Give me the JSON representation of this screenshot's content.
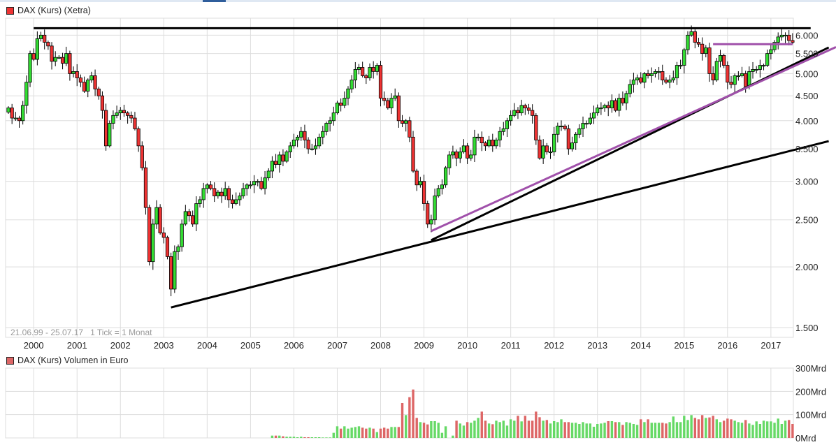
{
  "colors": {
    "up": "#33dd33",
    "down": "#ee3333",
    "vol_up": "#66d966",
    "vol_down": "#dd6666",
    "trend_black": "#000000",
    "trend_purple": "#a050aa",
    "grid": "#dddddd",
    "legend_price": "#ee3333",
    "legend_volume": "#dd6666"
  },
  "chart_data": [
    {
      "type": "candlestick",
      "title": "DAX (Kurs) (Xetra)",
      "interval": "1 month",
      "range_label": "21.06.99 - 25.07.17",
      "tick_label": "1 Tick = 1 Monat",
      "y_scale": "log",
      "ylim": [
        1450,
        6300
      ],
      "y_ticks": [
        "1.500",
        "2.000",
        "2.500",
        "3.000",
        "3.500",
        "4.000",
        "4.500",
        "5.000",
        "5.500",
        "6.000"
      ],
      "y_tick_values": [
        1500,
        2000,
        2500,
        3000,
        3500,
        4000,
        4500,
        5000,
        5500,
        6000
      ],
      "x_ticks": [
        "2000",
        "2001",
        "2002",
        "2003",
        "2004",
        "2005",
        "2006",
        "2007",
        "2008",
        "2009",
        "2010",
        "2011",
        "2012",
        "2013",
        "2014",
        "2015",
        "2016",
        "2017"
      ],
      "grid": true,
      "first_month": "1999-06",
      "closes_by_year": {
        "1999": [
          4250,
          4050,
          4050,
          4000,
          4300,
          4800,
          5500
        ],
        "2000": [
          5350,
          5900,
          6000,
          5800,
          5700,
          5300,
          5400,
          5400,
          5250,
          5500,
          5000,
          5050
        ],
        "2001": [
          4900,
          4800,
          4600,
          4850,
          4950,
          4650,
          4500,
          4200,
          3550,
          3950,
          4100,
          4150
        ],
        "2002": [
          4200,
          4150,
          4100,
          4050,
          3850,
          3550,
          3200,
          2650,
          2050,
          2450,
          2650,
          2350
        ],
        "2003": [
          2300,
          2100,
          1800,
          2150,
          2200,
          2450,
          2600,
          2550,
          2450,
          2700,
          2750,
          2900
        ],
        "2004": [
          2950,
          2900,
          2800,
          2850,
          2800,
          2900,
          2750,
          2700,
          2750,
          2800,
          2900,
          2950
        ],
        "2005": [
          2950,
          3000,
          3000,
          2900,
          3050,
          3150,
          3300,
          3250,
          3400,
          3300,
          3450,
          3550
        ],
        "2006": [
          3650,
          3700,
          3800,
          3650,
          3500,
          3500,
          3550,
          3700,
          3800,
          3950,
          4000,
          4150
        ],
        "2007": [
          4350,
          4300,
          4450,
          4650,
          4850,
          5100,
          5150,
          4950,
          4900,
          5150,
          5050,
          5200
        ],
        "2008": [
          4450,
          4400,
          4250,
          4450,
          4500,
          4000,
          3950,
          4000,
          3700,
          3150,
          2950,
          3000
        ],
        "2009": [
          2700,
          2450,
          2500,
          2800,
          2900,
          2950,
          3200,
          3400,
          3450,
          3350,
          3450,
          3550
        ],
        "2010": [
          3350,
          3400,
          3700,
          3700,
          3600,
          3550,
          3650,
          3550,
          3650,
          3800,
          3850,
          4000
        ],
        "2011": [
          4100,
          4200,
          4150,
          4300,
          4250,
          4200,
          4100,
          3650,
          3350,
          3550,
          3450,
          3450
        ],
        "2012": [
          3750,
          3900,
          3900,
          3850,
          3500,
          3600,
          3750,
          3850,
          3950,
          3950,
          4050,
          4150
        ],
        "2013": [
          4250,
          4250,
          4300,
          4250,
          4400,
          4200,
          4450,
          4350,
          4550,
          4750,
          4850,
          4900
        ],
        "2014": [
          4800,
          5000,
          4950,
          5000,
          5050,
          5050,
          4850,
          4800,
          4850,
          4900,
          5200,
          5200
        ],
        "2015": [
          5600,
          6000,
          6100,
          5800,
          5750,
          5500,
          5650,
          5000,
          4850,
          5300,
          5450,
          5200
        ],
        "2016": [
          4800,
          4750,
          4950,
          4950,
          5000,
          4700,
          5050,
          5100,
          5100,
          5200,
          5200,
          5500
        ],
        "2017": [
          5600,
          5800,
          5950,
          6000,
          6000,
          5850,
          5800
        ]
      },
      "trendlines": [
        {
          "color": "black",
          "from": [
            "2000-01",
            6200
          ],
          "to": [
            "2017-12",
            6200
          ]
        },
        {
          "color": "black",
          "from": [
            "2003-03",
            1650
          ],
          "to": [
            "2018-05",
            3630
          ]
        },
        {
          "color": "black",
          "from": [
            "2009-03",
            2270
          ],
          "to": [
            "2018-05",
            5660
          ]
        },
        {
          "color": "purple",
          "from": [
            "2009-03",
            2370
          ],
          "to": [
            "2018-07",
            5670
          ]
        },
        {
          "color": "purple",
          "from": [
            "2015-09",
            5750
          ],
          "to": [
            "2017-07",
            5750
          ]
        }
      ]
    },
    {
      "type": "bar",
      "title": "DAX (Kurs) Volumen in Euro",
      "unit": "Mrd",
      "ylim": [
        0,
        300
      ],
      "y_ticks": [
        "0Mrd",
        "100Mrd",
        "200Mrd",
        "300Mrd"
      ],
      "y_tick_values": [
        0,
        100,
        200,
        300
      ],
      "volumes_by_year": {
        "2005": [
          null,
          null,
          null,
          null,
          null,
          null,
          10,
          10,
          10,
          7,
          5,
          5
        ],
        "2006": [
          5,
          3,
          5,
          3,
          3,
          3,
          3,
          3,
          2,
          2,
          2,
          22
        ],
        "2007": [
          50,
          40,
          50,
          40,
          44,
          47,
          50,
          44,
          40,
          44,
          40,
          25
        ],
        "2008": [
          40,
          44,
          40,
          47,
          47,
          47,
          150,
          98,
          175,
          208,
          86,
          68
        ],
        "2009": [
          65,
          58,
          72,
          72,
          65,
          22,
          50,
          0,
          10,
          74,
          62,
          53
        ],
        "2010": [
          68,
          65,
          74,
          86,
          113,
          74,
          62,
          59,
          74,
          68,
          74,
          53
        ],
        "2011": [
          80,
          74,
          95,
          71,
          95,
          74,
          74,
          113,
          89,
          74,
          77,
          62
        ],
        "2012": [
          72,
          68,
          80,
          68,
          68,
          65,
          65,
          60,
          68,
          62,
          62,
          48
        ],
        "2013": [
          60,
          62,
          65,
          72,
          72,
          68,
          68,
          56,
          68,
          65,
          60,
          56
        ],
        "2014": [
          80,
          68,
          80,
          65,
          65,
          65,
          65,
          62,
          68,
          92,
          68,
          68
        ],
        "2015": [
          95,
          77,
          98,
          86,
          80,
          98,
          86,
          88,
          95,
          80,
          68,
          74
        ],
        "2016": [
          83,
          80,
          74,
          68,
          65,
          77,
          62,
          56,
          71,
          60,
          74,
          71
        ],
        "2017": [
          71,
          65,
          83,
          60,
          74,
          77,
          60
        ]
      }
    }
  ]
}
